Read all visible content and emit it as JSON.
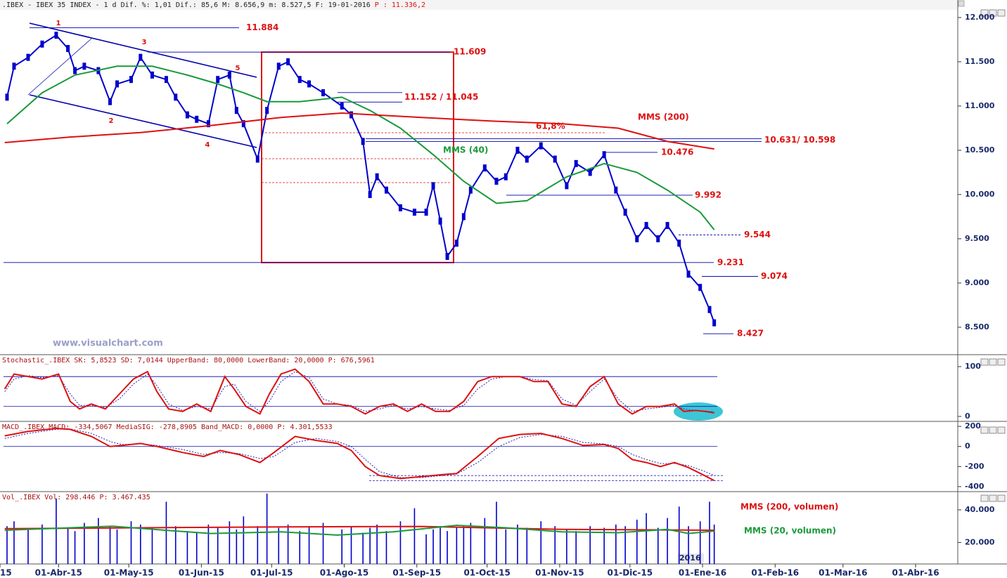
{
  "chart_data": [
    {
      "type": "line",
      "title": ".IBEX - IBEX 35 INDEX -  1 d Dif. %: 1,01 Dif.: 85,6 M: 8.656,9 m: 8.527,5 F: 19-01-2016",
      "price_label": "P : 11.336,2",
      "watermark": "www.visualchart.com",
      "year_label": "2016",
      "xlim": [
        6,
        415
      ],
      "xticks": [
        {
          "value": 0,
          "label": "15"
        },
        {
          "value": 31,
          "label": "01-Abr-15"
        },
        {
          "value": 61,
          "label": "01-May-15"
        },
        {
          "value": 92,
          "label": "01-Jun-15"
        },
        {
          "value": 122,
          "label": "01-Jul-15"
        },
        {
          "value": 153,
          "label": "01-Ago-15"
        },
        {
          "value": 184,
          "label": "01-Sep-15"
        },
        {
          "value": 214,
          "label": "01-Oct-15"
        },
        {
          "value": 245,
          "label": "01-Nov-15"
        },
        {
          "value": 275,
          "label": "01-Dic-15"
        },
        {
          "value": 306,
          "label": "01-Ene-16"
        },
        {
          "value": 337,
          "label": "01-Feb-16"
        },
        {
          "value": 366,
          "label": "01-Mar-16"
        },
        {
          "value": 397,
          "label": "01-Abr-16"
        }
      ],
      "ylim": [
        8190,
        12087
      ],
      "yticks": [
        {
          "value": 8500,
          "label": "8.500"
        },
        {
          "value": 9000,
          "label": "9.000"
        },
        {
          "value": 9500,
          "label": "9.500"
        },
        {
          "value": 10000,
          "label": "10.000"
        },
        {
          "value": 10500,
          "label": "10.500"
        },
        {
          "value": 11000,
          "label": "11.000"
        },
        {
          "value": 11500,
          "label": "11.500"
        },
        {
          "value": 12000,
          "label": "12.000"
        }
      ],
      "series": [
        {
          "color": "#0000cc",
          "x": [
            9,
            12,
            18,
            24,
            30,
            35,
            38,
            42,
            48,
            53,
            56,
            62,
            66,
            71,
            77,
            81,
            86,
            90,
            95,
            99,
            104,
            107,
            110,
            116,
            120,
            125,
            129,
            134,
            138,
            144,
            152,
            156,
            161,
            164,
            167,
            171,
            177,
            183,
            188,
            191,
            194,
            197,
            201,
            204,
            207,
            213,
            218,
            222,
            227,
            231,
            237,
            243,
            248,
            252,
            258,
            264,
            269,
            273,
            278,
            282,
            287,
            291,
            296,
            300,
            305,
            309,
            311
          ],
          "values": [
            11100,
            11450,
            11550,
            11700,
            11800,
            11650,
            11400,
            11450,
            11400,
            11050,
            11250,
            11300,
            11550,
            11350,
            11300,
            11100,
            10900,
            10850,
            10800,
            11300,
            11350,
            10950,
            10800,
            10400,
            10950,
            11450,
            11500,
            11300,
            11250,
            11150,
            11000,
            10900,
            10600,
            10000,
            10200,
            10050,
            9850,
            9800,
            9800,
            10100,
            9700,
            9300,
            9450,
            9750,
            10050,
            10300,
            10150,
            10200,
            10500,
            10400,
            10550,
            10400,
            10100,
            10350,
            10250,
            10450,
            10050,
            9800,
            9500,
            9650,
            9500,
            9650,
            9450,
            9100,
            8950,
            8700,
            8550
          ]
        },
        {
          "name": "MMS (40)",
          "color": "#1a9a3a",
          "x": [
            9,
            24,
            38,
            56,
            71,
            86,
            99,
            110,
            120,
            134,
            152,
            164,
            177,
            191,
            204,
            218,
            231,
            248,
            264,
            278,
            291,
            305,
            311
          ],
          "values": [
            10800,
            11150,
            11350,
            11450,
            11450,
            11350,
            11250,
            11150,
            11050,
            11050,
            11100,
            10950,
            10750,
            10450,
            10150,
            9900,
            9930,
            10200,
            10350,
            10250,
            10050,
            9800,
            9600
          ]
        },
        {
          "name": "MMS (200)",
          "color": "#dd1111",
          "x": [
            8,
            36,
            66,
            96,
            126,
            152,
            186,
            216,
            246,
            270,
            291,
            311
          ],
          "values": [
            10587,
            10650,
            10700,
            10780,
            10870,
            10920,
            10870,
            10830,
            10800,
            10750,
            10600,
            10515
          ]
        }
      ],
      "annotations": [
        {
          "label": "11.884",
          "values": [
            11884
          ]
        },
        {
          "label": "11.609",
          "values": [
            11609
          ]
        },
        {
          "label": "11.152 / 11.045",
          "values": [
            11152,
            11045
          ]
        },
        {
          "label": "61,8%"
        },
        {
          "label": "10.631/ 10.598",
          "values": [
            10631,
            10598
          ]
        },
        {
          "label": "10.476",
          "values": [
            10476
          ]
        },
        {
          "label": "9.992",
          "values": [
            9992
          ]
        },
        {
          "label": "9.544",
          "values": [
            9544
          ]
        },
        {
          "label": "9.231",
          "values": [
            9231
          ]
        },
        {
          "label": "9.074",
          "values": [
            9074
          ]
        },
        {
          "label": "8.427",
          "values": [
            8427
          ]
        }
      ],
      "wave_labels": [
        "1",
        "2",
        "3",
        "4",
        "5"
      ]
    },
    {
      "type": "line",
      "title": "Stochastic_.IBEX SK: 5,8523 SD: 7,0144 UpperBand: 80,0000 LowerBand: 20,0000 P: 676,5961",
      "ylim": [
        -10,
        124
      ],
      "yticks": [
        0,
        100
      ],
      "bands": [
        80,
        20
      ],
      "series": [
        {
          "color": "#2222aa",
          "style": "dotted",
          "x": [
            8,
            12,
            18,
            24,
            31,
            36,
            40,
            45,
            51,
            57,
            63,
            69,
            73,
            78,
            84,
            90,
            96,
            102,
            106,
            111,
            117,
            121,
            126,
            132,
            138,
            144,
            150,
            156,
            162,
            168,
            174,
            180,
            186,
            192,
            198,
            204,
            210,
            216,
            222,
            228,
            234,
            240,
            246,
            252,
            258,
            264,
            270,
            276,
            282,
            288,
            294,
            298,
            303,
            307,
            311
          ],
          "values": [
            50,
            75,
            82,
            78,
            82,
            45,
            22,
            22,
            18,
            35,
            65,
            85,
            62,
            25,
            12,
            20,
            15,
            60,
            65,
            30,
            10,
            30,
            70,
            90,
            78,
            35,
            25,
            22,
            10,
            15,
            22,
            15,
            20,
            15,
            12,
            22,
            55,
            75,
            80,
            80,
            74,
            72,
            35,
            22,
            50,
            75,
            35,
            10,
            15,
            18,
            22,
            15,
            12,
            11,
            9
          ]
        },
        {
          "color": "#dd1111",
          "x": [
            8,
            12,
            18,
            24,
            31,
            36,
            40,
            45,
            51,
            57,
            63,
            69,
            73,
            78,
            84,
            90,
            96,
            102,
            106,
            111,
            117,
            121,
            126,
            132,
            138,
            144,
            150,
            156,
            162,
            168,
            174,
            180,
            186,
            192,
            198,
            204,
            210,
            216,
            222,
            228,
            234,
            240,
            246,
            252,
            258,
            264,
            270,
            276,
            282,
            288,
            294,
            298,
            303,
            307,
            311
          ],
          "values": [
            55,
            85,
            80,
            75,
            85,
            30,
            15,
            25,
            15,
            45,
            75,
            90,
            50,
            15,
            10,
            25,
            10,
            80,
            55,
            20,
            5,
            45,
            85,
            95,
            70,
            25,
            25,
            20,
            5,
            20,
            25,
            10,
            25,
            10,
            10,
            30,
            70,
            80,
            80,
            80,
            70,
            70,
            25,
            20,
            60,
            80,
            25,
            5,
            20,
            20,
            25,
            10,
            12,
            10,
            7
          ]
        }
      ]
    },
    {
      "type": "line",
      "title": "MACD_.IBEX MACD: -334,5067 MediaSIG: -278,8905 Band_MACD: 0,0000 P: 4.301,5533",
      "ylim": [
        -450,
        250
      ],
      "yticks": [
        -400,
        -200,
        0,
        200
      ],
      "bands": [
        0
      ],
      "dashed_levels": [
        -290,
        -340
      ],
      "series": [
        {
          "color": "#2222aa",
          "style": "dotted",
          "x": [
            8,
            18,
            30,
            36,
            45,
            53,
            58,
            66,
            73,
            84,
            93,
            100,
            108,
            117,
            123,
            132,
            141,
            150,
            156,
            162,
            168,
            177,
            186,
            195,
            201,
            210,
            219,
            228,
            237,
            246,
            255,
            264,
            270,
            276,
            282,
            288,
            294,
            300,
            306,
            311
          ],
          "values": [
            80,
            130,
            170,
            175,
            130,
            50,
            20,
            25,
            10,
            -30,
            -80,
            -60,
            -70,
            -120,
            -100,
            40,
            80,
            50,
            0,
            -130,
            -250,
            -310,
            -310,
            -290,
            -275,
            -160,
            0,
            90,
            120,
            100,
            40,
            25,
            0,
            -80,
            -130,
            -170,
            -170,
            -190,
            -240,
            -290
          ]
        },
        {
          "color": "#dd1111",
          "x": [
            8,
            18,
            30,
            36,
            45,
            53,
            58,
            66,
            73,
            84,
            93,
            100,
            108,
            117,
            123,
            132,
            141,
            150,
            156,
            162,
            168,
            177,
            186,
            195,
            201,
            210,
            219,
            228,
            237,
            246,
            255,
            264,
            270,
            276,
            282,
            288,
            294,
            300,
            306,
            311
          ],
          "values": [
            106,
            150,
            180,
            170,
            100,
            0,
            10,
            30,
            0,
            -60,
            -100,
            -40,
            -80,
            -160,
            -60,
            100,
            60,
            30,
            -40,
            -200,
            -290,
            -320,
            -300,
            -280,
            -270,
            -100,
            80,
            120,
            130,
            80,
            10,
            20,
            -20,
            -130,
            -160,
            -200,
            -160,
            -210,
            -280,
            -340
          ]
        }
      ]
    },
    {
      "type": "bar",
      "title": "Vol_.IBEX Vol: 298.446 P: 3.467.435",
      "ylim": [
        6800,
        51200
      ],
      "yticks": [
        {
          "value": 20000,
          "label": "20.000"
        },
        {
          "value": 40000,
          "label": "40.000"
        }
      ],
      "color": "#0000cc",
      "x": [
        9,
        12,
        18,
        24,
        30,
        35,
        38,
        42,
        48,
        53,
        56,
        62,
        66,
        71,
        77,
        81,
        86,
        90,
        95,
        99,
        104,
        107,
        110,
        116,
        120,
        125,
        129,
        134,
        138,
        144,
        152,
        156,
        161,
        164,
        167,
        171,
        177,
        183,
        188,
        191,
        194,
        197,
        201,
        204,
        207,
        213,
        218,
        222,
        227,
        231,
        237,
        243,
        248,
        252,
        258,
        264,
        269,
        273,
        278,
        282,
        287,
        291,
        296,
        300,
        305,
        309,
        311
      ],
      "values": [
        30000,
        33000,
        28000,
        31000,
        47000,
        29000,
        27000,
        32000,
        35000,
        30000,
        28000,
        33000,
        31000,
        29000,
        45000,
        30000,
        27000,
        26000,
        31000,
        29000,
        33000,
        28000,
        36000,
        30000,
        50000,
        29000,
        31000,
        27000,
        30000,
        32000,
        28000,
        30000,
        26000,
        29000,
        31000,
        27000,
        33000,
        41000,
        25000,
        28000,
        30000,
        27000,
        29000,
        30000,
        32000,
        35000,
        45000,
        28000,
        31000,
        29000,
        33000,
        30000,
        28000,
        27000,
        30000,
        29000,
        31000,
        30000,
        34000,
        38000,
        29000,
        35000,
        42000,
        30000,
        33000,
        45000,
        31000
      ],
      "series": [
        {
          "name": "MMS (200, volumen)",
          "color": "#dd1111",
          "x": [
            8,
            66,
            126,
            186,
            246,
            311
          ],
          "values": [
            28500,
            29000,
            29500,
            29800,
            28000,
            27500
          ]
        },
        {
          "name": "MMS (20, volumen)",
          "color": "#1a9a3a",
          "x": [
            8,
            36,
            54,
            81,
            96,
            126,
            150,
            174,
            201,
            222,
            246,
            270,
            291,
            300,
            311
          ],
          "values": [
            27500,
            29000,
            30000,
            27000,
            25500,
            26500,
            24500,
            26500,
            30500,
            29000,
            26500,
            26000,
            28000,
            25500,
            27000
          ]
        }
      ]
    }
  ]
}
